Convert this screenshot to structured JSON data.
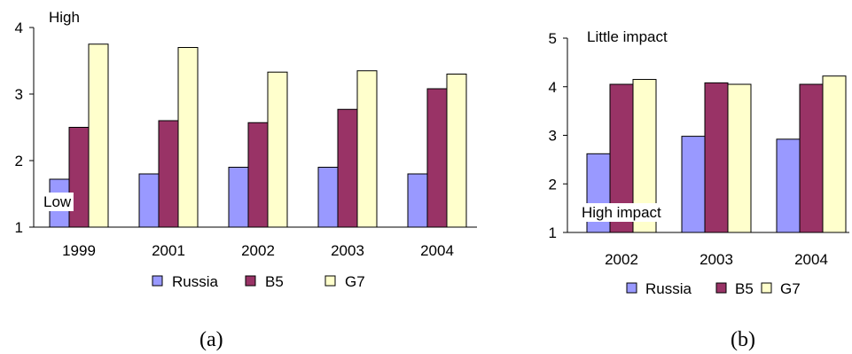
{
  "colors": {
    "Russia": "#9999ff",
    "B5": "#993366",
    "G7": "#ffffcc",
    "stroke": "#000000"
  },
  "chart_data": [
    {
      "type": "bar",
      "caption": "(a)",
      "categories": [
        "1999",
        "2001",
        "2002",
        "2003",
        "2004"
      ],
      "series": [
        {
          "name": "Russia",
          "values": [
            1.72,
            1.8,
            1.9,
            1.9,
            1.8
          ]
        },
        {
          "name": "B5",
          "values": [
            2.5,
            2.6,
            2.57,
            2.77,
            3.08
          ]
        },
        {
          "name": "G7",
          "values": [
            3.75,
            3.7,
            3.33,
            3.35,
            3.3
          ]
        }
      ],
      "ylim": [
        1,
        4
      ],
      "yticks": [
        "1",
        "2",
        "3",
        "4"
      ],
      "annotations": {
        "top": "High",
        "bottom": "Low"
      },
      "legend_position": "bottom",
      "grid": false
    },
    {
      "type": "bar",
      "caption": "(b)",
      "categories": [
        "2002",
        "2003",
        "2004"
      ],
      "series": [
        {
          "name": "Russia",
          "values": [
            2.62,
            2.98,
            2.92
          ]
        },
        {
          "name": "B5",
          "values": [
            4.05,
            4.08,
            4.05
          ]
        },
        {
          "name": "G7",
          "values": [
            4.15,
            4.05,
            4.22
          ]
        }
      ],
      "ylim": [
        1,
        5
      ],
      "yticks": [
        "1",
        "2",
        "3",
        "4",
        "5"
      ],
      "annotations": {
        "top": "Little  impact",
        "bottom": "High impact"
      },
      "legend_position": "bottom",
      "grid": false
    }
  ]
}
